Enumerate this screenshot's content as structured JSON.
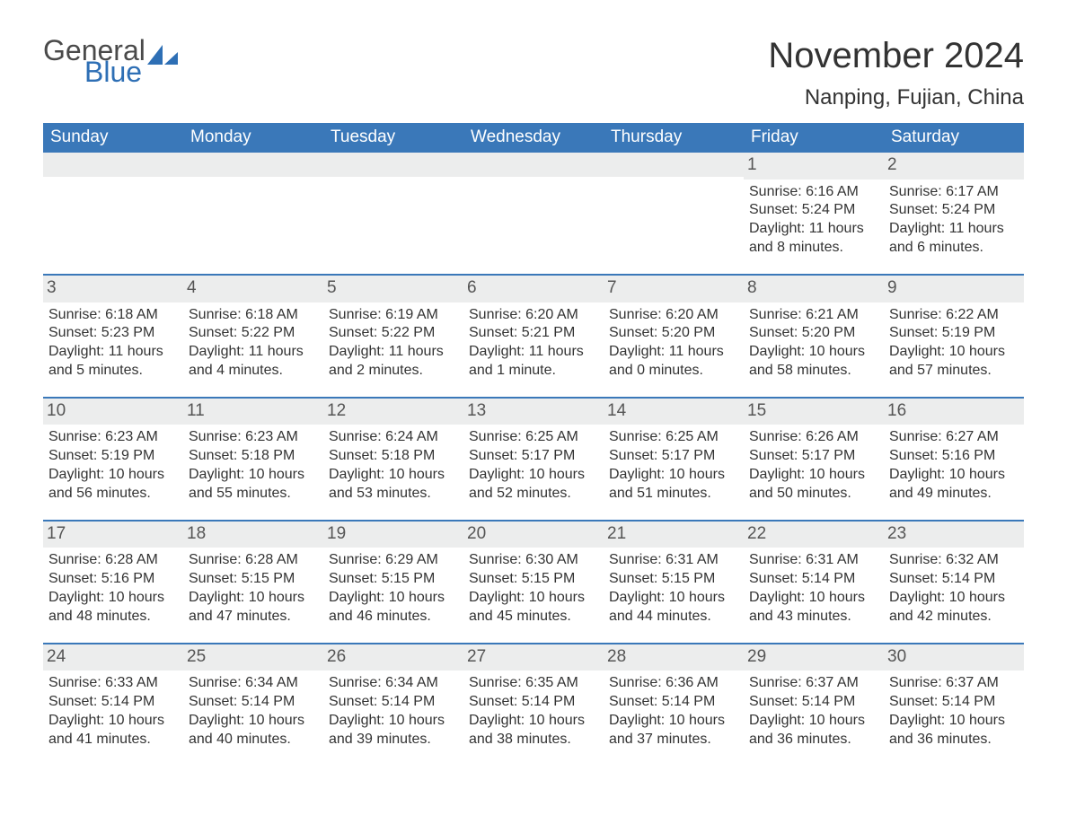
{
  "brand": {
    "word1": "General",
    "word2": "Blue"
  },
  "title": "November 2024",
  "location": "Nanping, Fujian, China",
  "colors": {
    "header_bg": "#3a78b9",
    "header_text": "#ffffff",
    "strip_bg": "#eceded",
    "text": "#333333",
    "brand_blue": "#2e6fb5",
    "brand_gray": "#4a4a4a",
    "page_bg": "#ffffff"
  },
  "typography": {
    "title_fontsize": 40,
    "location_fontsize": 24,
    "dayhead_fontsize": 19,
    "daynum_fontsize": 19,
    "detail_fontsize": 16
  },
  "day_headers": [
    "Sunday",
    "Monday",
    "Tuesday",
    "Wednesday",
    "Thursday",
    "Friday",
    "Saturday"
  ],
  "weeks": [
    [
      null,
      null,
      null,
      null,
      null,
      {
        "n": "1",
        "sr": "Sunrise: 6:16 AM",
        "ss": "Sunset: 5:24 PM",
        "dl": "Daylight: 11 hours and 8 minutes."
      },
      {
        "n": "2",
        "sr": "Sunrise: 6:17 AM",
        "ss": "Sunset: 5:24 PM",
        "dl": "Daylight: 11 hours and 6 minutes."
      }
    ],
    [
      {
        "n": "3",
        "sr": "Sunrise: 6:18 AM",
        "ss": "Sunset: 5:23 PM",
        "dl": "Daylight: 11 hours and 5 minutes."
      },
      {
        "n": "4",
        "sr": "Sunrise: 6:18 AM",
        "ss": "Sunset: 5:22 PM",
        "dl": "Daylight: 11 hours and 4 minutes."
      },
      {
        "n": "5",
        "sr": "Sunrise: 6:19 AM",
        "ss": "Sunset: 5:22 PM",
        "dl": "Daylight: 11 hours and 2 minutes."
      },
      {
        "n": "6",
        "sr": "Sunrise: 6:20 AM",
        "ss": "Sunset: 5:21 PM",
        "dl": "Daylight: 11 hours and 1 minute."
      },
      {
        "n": "7",
        "sr": "Sunrise: 6:20 AM",
        "ss": "Sunset: 5:20 PM",
        "dl": "Daylight: 11 hours and 0 minutes."
      },
      {
        "n": "8",
        "sr": "Sunrise: 6:21 AM",
        "ss": "Sunset: 5:20 PM",
        "dl": "Daylight: 10 hours and 58 minutes."
      },
      {
        "n": "9",
        "sr": "Sunrise: 6:22 AM",
        "ss": "Sunset: 5:19 PM",
        "dl": "Daylight: 10 hours and 57 minutes."
      }
    ],
    [
      {
        "n": "10",
        "sr": "Sunrise: 6:23 AM",
        "ss": "Sunset: 5:19 PM",
        "dl": "Daylight: 10 hours and 56 minutes."
      },
      {
        "n": "11",
        "sr": "Sunrise: 6:23 AM",
        "ss": "Sunset: 5:18 PM",
        "dl": "Daylight: 10 hours and 55 minutes."
      },
      {
        "n": "12",
        "sr": "Sunrise: 6:24 AM",
        "ss": "Sunset: 5:18 PM",
        "dl": "Daylight: 10 hours and 53 minutes."
      },
      {
        "n": "13",
        "sr": "Sunrise: 6:25 AM",
        "ss": "Sunset: 5:17 PM",
        "dl": "Daylight: 10 hours and 52 minutes."
      },
      {
        "n": "14",
        "sr": "Sunrise: 6:25 AM",
        "ss": "Sunset: 5:17 PM",
        "dl": "Daylight: 10 hours and 51 minutes."
      },
      {
        "n": "15",
        "sr": "Sunrise: 6:26 AM",
        "ss": "Sunset: 5:17 PM",
        "dl": "Daylight: 10 hours and 50 minutes."
      },
      {
        "n": "16",
        "sr": "Sunrise: 6:27 AM",
        "ss": "Sunset: 5:16 PM",
        "dl": "Daylight: 10 hours and 49 minutes."
      }
    ],
    [
      {
        "n": "17",
        "sr": "Sunrise: 6:28 AM",
        "ss": "Sunset: 5:16 PM",
        "dl": "Daylight: 10 hours and 48 minutes."
      },
      {
        "n": "18",
        "sr": "Sunrise: 6:28 AM",
        "ss": "Sunset: 5:15 PM",
        "dl": "Daylight: 10 hours and 47 minutes."
      },
      {
        "n": "19",
        "sr": "Sunrise: 6:29 AM",
        "ss": "Sunset: 5:15 PM",
        "dl": "Daylight: 10 hours and 46 minutes."
      },
      {
        "n": "20",
        "sr": "Sunrise: 6:30 AM",
        "ss": "Sunset: 5:15 PM",
        "dl": "Daylight: 10 hours and 45 minutes."
      },
      {
        "n": "21",
        "sr": "Sunrise: 6:31 AM",
        "ss": "Sunset: 5:15 PM",
        "dl": "Daylight: 10 hours and 44 minutes."
      },
      {
        "n": "22",
        "sr": "Sunrise: 6:31 AM",
        "ss": "Sunset: 5:14 PM",
        "dl": "Daylight: 10 hours and 43 minutes."
      },
      {
        "n": "23",
        "sr": "Sunrise: 6:32 AM",
        "ss": "Sunset: 5:14 PM",
        "dl": "Daylight: 10 hours and 42 minutes."
      }
    ],
    [
      {
        "n": "24",
        "sr": "Sunrise: 6:33 AM",
        "ss": "Sunset: 5:14 PM",
        "dl": "Daylight: 10 hours and 41 minutes."
      },
      {
        "n": "25",
        "sr": "Sunrise: 6:34 AM",
        "ss": "Sunset: 5:14 PM",
        "dl": "Daylight: 10 hours and 40 minutes."
      },
      {
        "n": "26",
        "sr": "Sunrise: 6:34 AM",
        "ss": "Sunset: 5:14 PM",
        "dl": "Daylight: 10 hours and 39 minutes."
      },
      {
        "n": "27",
        "sr": "Sunrise: 6:35 AM",
        "ss": "Sunset: 5:14 PM",
        "dl": "Daylight: 10 hours and 38 minutes."
      },
      {
        "n": "28",
        "sr": "Sunrise: 6:36 AM",
        "ss": "Sunset: 5:14 PM",
        "dl": "Daylight: 10 hours and 37 minutes."
      },
      {
        "n": "29",
        "sr": "Sunrise: 6:37 AM",
        "ss": "Sunset: 5:14 PM",
        "dl": "Daylight: 10 hours and 36 minutes."
      },
      {
        "n": "30",
        "sr": "Sunrise: 6:37 AM",
        "ss": "Sunset: 5:14 PM",
        "dl": "Daylight: 10 hours and 36 minutes."
      }
    ]
  ]
}
